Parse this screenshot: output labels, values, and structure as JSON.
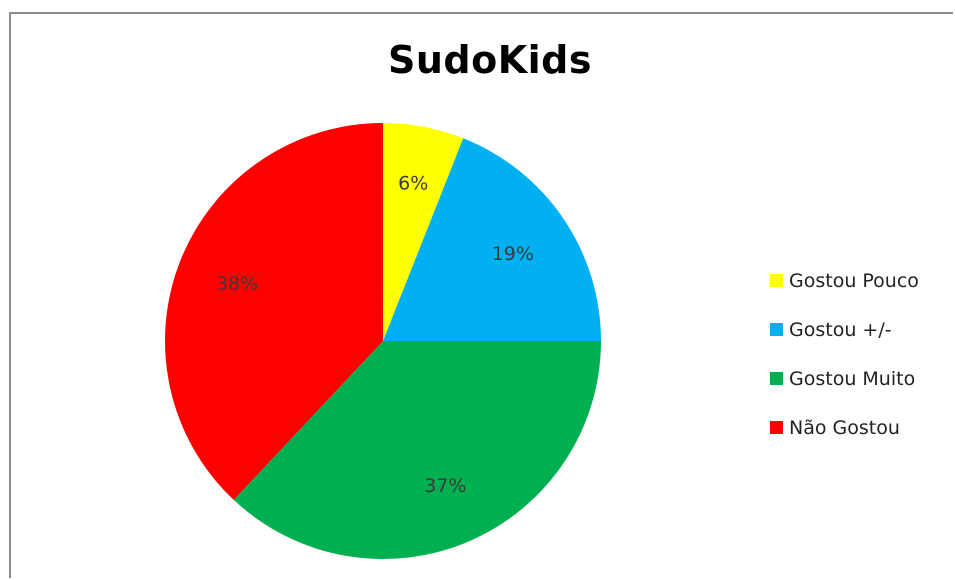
{
  "chart_data": {
    "type": "pie",
    "title": "SudoKids",
    "legend_position": "right",
    "slices": [
      {
        "name": "Gostou Pouco",
        "value": 6,
        "label": "6%",
        "color": "#ffff00"
      },
      {
        "name": "Gostou +/-",
        "value": 19,
        "label": "19%",
        "color": "#00b0f0"
      },
      {
        "name": "Gostou Muito",
        "value": 37,
        "label": "37%",
        "color": "#00b050"
      },
      {
        "name": "Não Gostou",
        "value": 38,
        "label": "38%",
        "color": "#ff0000"
      }
    ]
  }
}
